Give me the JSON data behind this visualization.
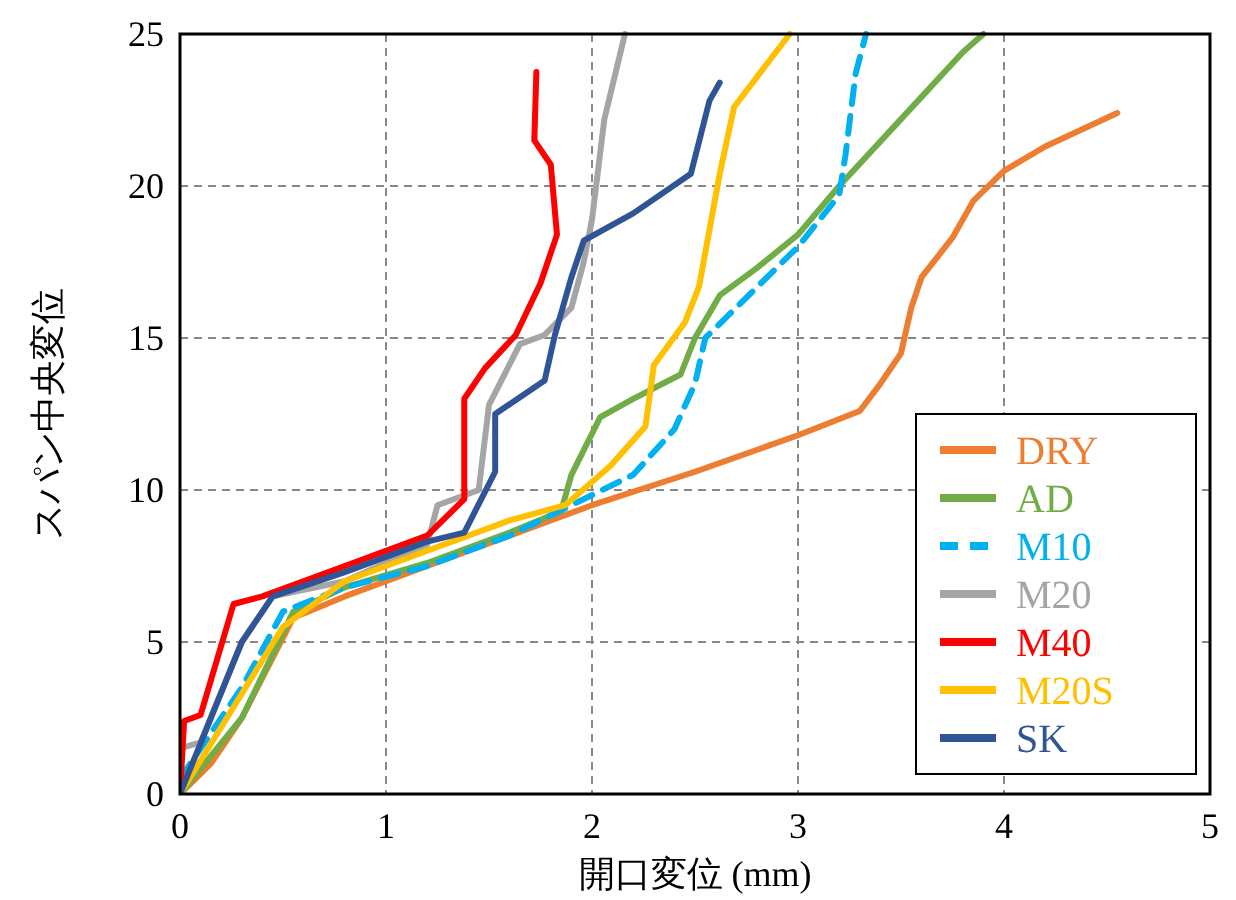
{
  "chart_data": {
    "type": "line",
    "xlabel": "開口変位 (mm)",
    "ylabel": "スパン中央変位",
    "xlim": [
      0,
      5
    ],
    "ylim": [
      0,
      25
    ],
    "xticks": [
      0,
      1,
      2,
      3,
      4,
      5
    ],
    "yticks": [
      0,
      5,
      10,
      15,
      20,
      25
    ],
    "grid": true,
    "legend": "bottom right",
    "series": [
      {
        "name": "DRY",
        "color": "#ed7d31",
        "line_style": "solid",
        "x": [
          0,
          0.15,
          0.3,
          0.55,
          0.8,
          1.2,
          1.6,
          2,
          2.5,
          3,
          3.3,
          3.4,
          3.5,
          3.55,
          3.6,
          3.75,
          3.85,
          4,
          4.2,
          4.55
        ],
        "values": [
          0,
          1,
          2.5,
          5.8,
          6.5,
          7.5,
          8.5,
          9.5,
          10.6,
          11.8,
          12.6,
          13.5,
          14.5,
          16,
          17,
          18.3,
          19.5,
          20.5,
          21.3,
          22.4
        ]
      },
      {
        "name": "AD",
        "color": "#70ad47",
        "line_style": "solid",
        "x": [
          0,
          0.3,
          0.55,
          0.8,
          1.2,
          1.6,
          1.85,
          1.9,
          2.04,
          2.2,
          2.43,
          2.5,
          2.62,
          2.8,
          3,
          3.2,
          3.5,
          3.8,
          3.9
        ],
        "values": [
          0,
          2.5,
          6,
          6.8,
          7.6,
          8.6,
          9.3,
          10.5,
          12.4,
          13,
          13.8,
          15,
          16.4,
          17.3,
          18.4,
          20,
          22.2,
          24.4,
          25
        ]
      },
      {
        "name": "M10",
        "color": "#00b0f0",
        "line_style": "dashed",
        "x": [
          0,
          0.3,
          0.5,
          0.8,
          1.2,
          1.6,
          1.9,
          2.2,
          2.4,
          2.5,
          2.55,
          2.7,
          3,
          3.2,
          3.23,
          3.28,
          3.33
        ],
        "values": [
          0.5,
          3.5,
          6,
          6.8,
          7.5,
          8.5,
          9.5,
          10.5,
          12,
          13.5,
          15,
          16,
          18,
          19.7,
          21,
          23.7,
          25
        ]
      },
      {
        "name": "M20",
        "color": "#a5a5a5",
        "line_style": "solid",
        "x": [
          0,
          0.1,
          0.3,
          0.45,
          0.8,
          1.2,
          1.25,
          1.45,
          1.5,
          1.65,
          1.77,
          1.9,
          1.96,
          2,
          2.06,
          2.16
        ],
        "values": [
          1.5,
          1.7,
          5,
          6.5,
          7,
          8.2,
          9.5,
          10,
          12.8,
          14.8,
          15.1,
          16,
          17.5,
          18.9,
          22.2,
          25
        ]
      },
      {
        "name": "M40",
        "color": "#ff0000",
        "line_style": "solid",
        "x": [
          0,
          0.02,
          0.1,
          0.26,
          0.4,
          0.8,
          1.2,
          1.38,
          1.38,
          1.48,
          1.63,
          1.75,
          1.83,
          1.8,
          1.72,
          1.73
        ],
        "values": [
          0,
          2.4,
          2.6,
          6.25,
          6.5,
          7.5,
          8.5,
          9.7,
          13,
          14,
          15.1,
          16.8,
          18.4,
          20.7,
          21.5,
          23.75
        ]
      },
      {
        "name": "M20S",
        "color": "#ffc000",
        "line_style": "solid",
        "x": [
          0,
          0.5,
          0.8,
          1.2,
          1.6,
          1.87,
          2.09,
          2.26,
          2.3,
          2.45,
          2.52,
          2.62,
          2.69,
          2.96
        ],
        "values": [
          0,
          5.5,
          7,
          8,
          9,
          9.5,
          10.8,
          12.1,
          14.1,
          15.5,
          16.7,
          20.4,
          22.6,
          25
        ]
      },
      {
        "name": "SK",
        "color": "#2f5597",
        "line_style": "solid",
        "x": [
          0,
          0.3,
          0.45,
          0.8,
          1.2,
          1.38,
          1.53,
          1.53,
          1.77,
          1.82,
          1.9,
          1.96,
          2.2,
          2.48,
          2.57,
          2.62
        ],
        "values": [
          0,
          5,
          6.5,
          7.3,
          8.3,
          8.6,
          10.6,
          12.5,
          13.6,
          15.1,
          17,
          18.2,
          19.1,
          20.4,
          22.8,
          23.4
        ]
      }
    ]
  }
}
